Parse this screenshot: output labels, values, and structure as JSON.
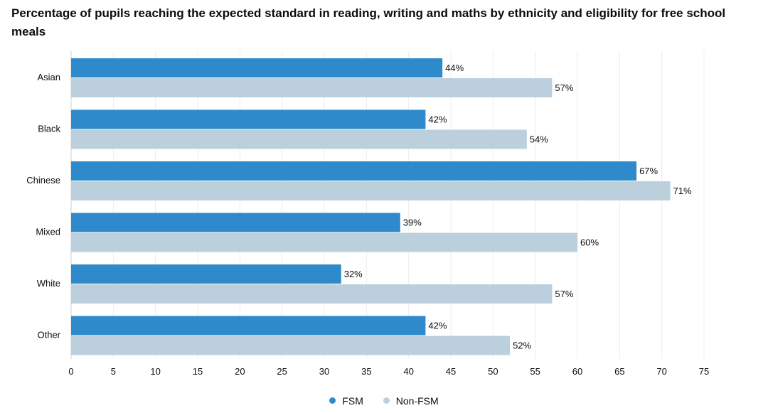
{
  "colors": {
    "fsm": "#2f8acb",
    "non_fsm": "#bbd0dc",
    "grid": "#ececec",
    "text": "#0b0c0c"
  },
  "chart_data": {
    "type": "bar",
    "orientation": "horizontal",
    "title": "Percentage of pupils reaching the expected standard in reading, writing and maths by ethnicity and eligibility for free school meals",
    "categories": [
      "Asian",
      "Black",
      "Chinese",
      "Mixed",
      "White",
      "Other"
    ],
    "series": [
      {
        "name": "FSM",
        "values": [
          44,
          42,
          67,
          39,
          32,
          42
        ],
        "labels": [
          "44%",
          "42%",
          "67%",
          "39%",
          "32%",
          "42%"
        ]
      },
      {
        "name": "Non-FSM",
        "values": [
          57,
          54,
          71,
          60,
          57,
          52
        ],
        "labels": [
          "57%",
          "54%",
          "71%",
          "60%",
          "57%",
          "52%"
        ]
      }
    ],
    "xlim": [
      0,
      75
    ],
    "xticks": [
      "0",
      "5",
      "10",
      "15",
      "20",
      "25",
      "30",
      "35",
      "40",
      "45",
      "50",
      "55",
      "60",
      "65",
      "70",
      "75"
    ],
    "xlabel": "",
    "ylabel": "",
    "grid": true,
    "legend_position": "bottom-center"
  }
}
